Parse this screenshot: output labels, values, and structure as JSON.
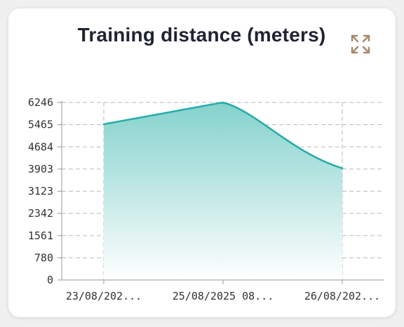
{
  "card": {
    "title": "Training distance (meters)",
    "expand_icon": "expand-arrows-icon"
  },
  "chart_data": {
    "type": "area",
    "title": "Training distance (meters)",
    "categories": [
      "23/08/202...",
      "25/08/2025  08...",
      "26/08/202..."
    ],
    "values": [
      5480,
      6246,
      3930
    ],
    "yticks": [
      0,
      780,
      1561,
      2342,
      3123,
      3903,
      4684,
      5465,
      6246
    ],
    "ylim": [
      0,
      6246
    ],
    "grid": true,
    "colors": {
      "line": "#26ada9",
      "fill_top": "#7fd0cb",
      "fill_bottom": "#ffffff",
      "expand_icon": "#a7876a"
    }
  }
}
